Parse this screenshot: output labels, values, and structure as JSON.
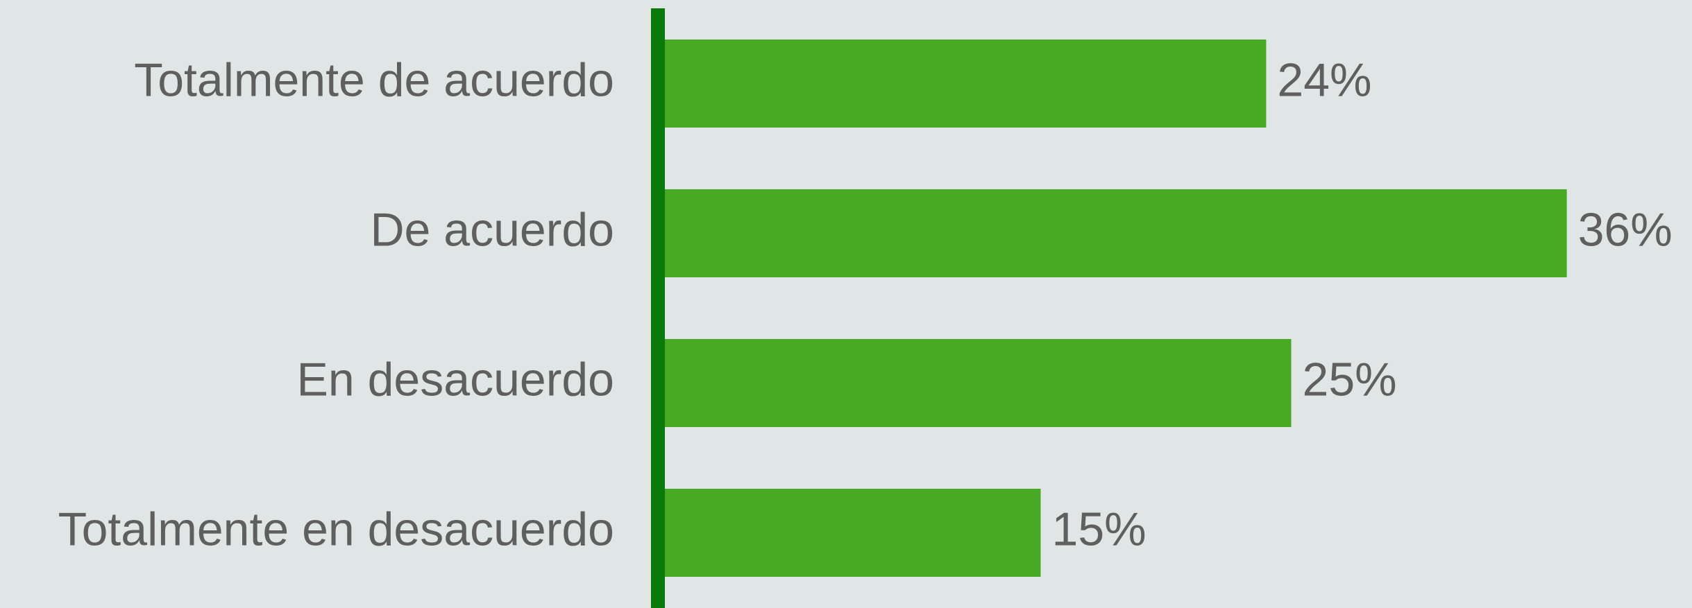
{
  "chart_data": {
    "type": "bar",
    "orientation": "horizontal",
    "categories": [
      "Totalmente de acuerdo",
      "De acuerdo",
      "En desacuerdo",
      "Totalmente en desacuerdo"
    ],
    "values": [
      24,
      36,
      25,
      15
    ],
    "value_labels": [
      "24%",
      "36%",
      "25%",
      "15%"
    ],
    "color": "#46a823",
    "axis_color": "#0a7a0a",
    "xlim": [
      0,
      40
    ]
  }
}
